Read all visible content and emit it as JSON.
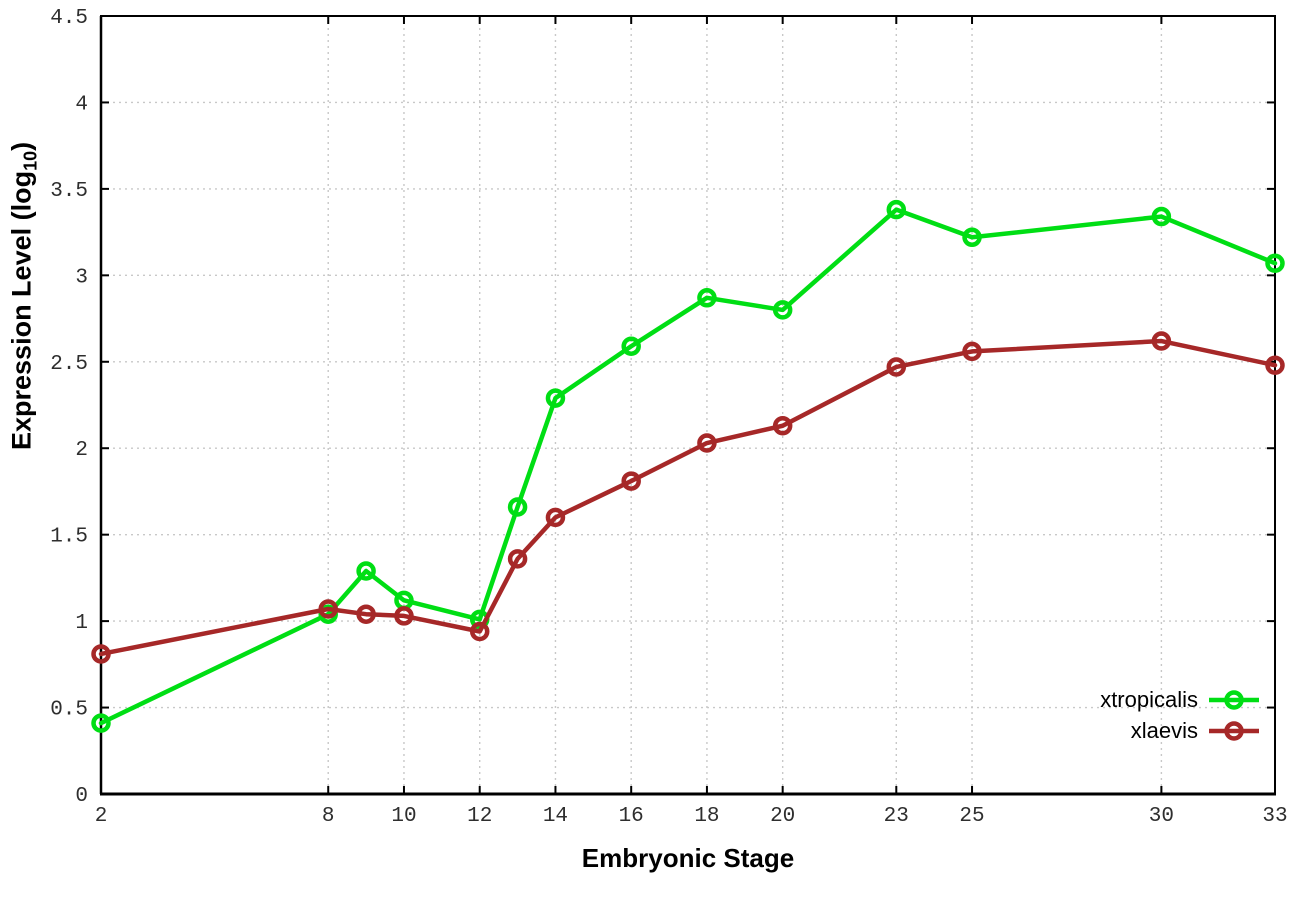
{
  "page": {
    "background": "#ffffff"
  },
  "chart_data": {
    "type": "line",
    "title": "",
    "xlabel": "Embryonic Stage",
    "ylabel": {
      "prefix": "Expression Level (log",
      "subscript": "10",
      "suffix": ")"
    },
    "x": [
      2,
      8,
      9,
      10,
      12,
      13,
      14,
      16,
      18,
      20,
      23,
      25,
      30,
      33
    ],
    "series": [
      {
        "name": "xtropicalis",
        "color": "#00de14",
        "values": [
          0.41,
          1.04,
          1.29,
          1.12,
          1.01,
          1.66,
          2.29,
          2.59,
          2.87,
          2.8,
          3.38,
          3.22,
          3.34,
          3.07
        ]
      },
      {
        "name": "xlaevis",
        "color": "#a62828",
        "values": [
          0.81,
          1.07,
          1.04,
          1.03,
          0.94,
          1.36,
          1.6,
          1.81,
          2.03,
          2.13,
          2.47,
          2.56,
          2.62,
          2.48
        ]
      }
    ],
    "xticks": [
      "2",
      "8",
      "10",
      "12",
      "14",
      "16",
      "18",
      "20",
      "23",
      "25",
      "30",
      "33"
    ],
    "yticks": [
      "0",
      "0.5",
      "1",
      "1.5",
      "2",
      "2.5",
      "3",
      "3.5",
      "4",
      "4.5"
    ],
    "xlim": [
      2,
      33
    ],
    "ylim": [
      0,
      4.5
    ],
    "grid": true,
    "legend_position": "bottom-right",
    "style": {
      "grid_color": "#c8c8c8",
      "border_color": "#000000",
      "tick_label_color": "#2e2e2e",
      "line_width": 4.5,
      "marker_radius": 7.5,
      "marker_stroke": 4.5
    }
  }
}
